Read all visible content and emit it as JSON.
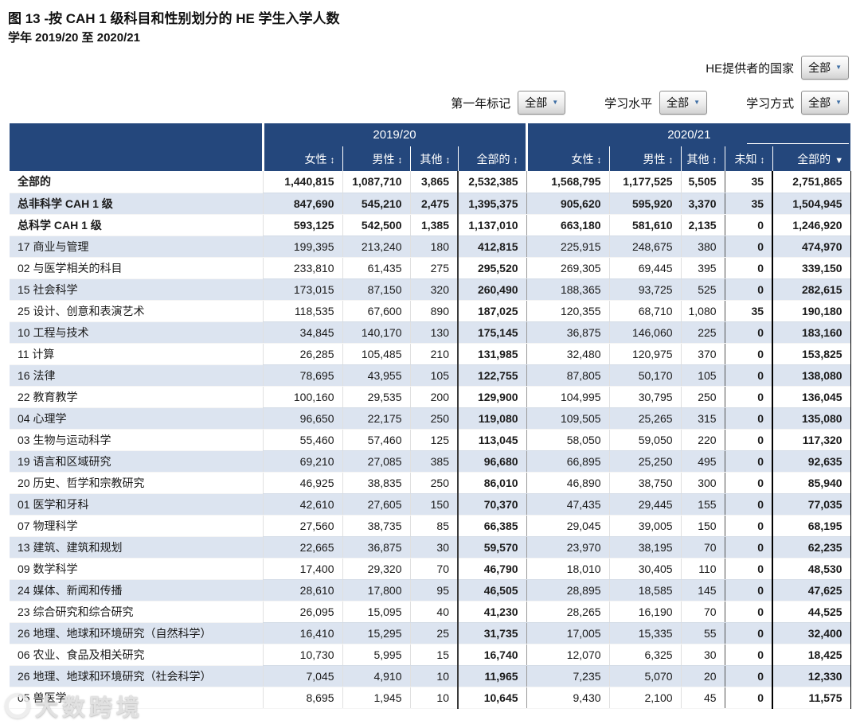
{
  "title": "图 13 -按 CAH 1 级科目和性别划分的 HE 学生入学人数",
  "subtitle": "学年 2019/20 至 2020/21",
  "colors": {
    "header_bg": "#24477C",
    "row_alt": "#DCE4F0",
    "dropdown_arrow": "#3F6FA5"
  },
  "icons": {
    "sort_both": "↕",
    "sort_desc": "▼",
    "dropdown_arrow": "▼"
  },
  "filters": [
    {
      "id": "he-provider-country",
      "label": "HE提供者的国家",
      "value": "全部"
    },
    {
      "id": "first-year-marker",
      "label": "第一年标记",
      "value": "全部"
    },
    {
      "id": "study-level",
      "label": "学习水平",
      "value": "全部"
    },
    {
      "id": "study-mode",
      "label": "学习方式",
      "value": "全部"
    }
  ],
  "table": {
    "year_groups": [
      {
        "label": "2019/20",
        "colspan": 4
      },
      {
        "label": "2020/21",
        "colspan": 5
      }
    ],
    "columns": [
      {
        "label": "女性",
        "sort": "both"
      },
      {
        "label": "男性",
        "sort": "both"
      },
      {
        "label": "其他",
        "sort": "both"
      },
      {
        "label": "全部的",
        "sort": "both"
      },
      {
        "label": "女性",
        "sort": "both"
      },
      {
        "label": "男性",
        "sort": "both"
      },
      {
        "label": "其他",
        "sort": "both"
      },
      {
        "label": "未知",
        "sort": "both"
      },
      {
        "label": "全部的",
        "sort": "desc"
      }
    ],
    "rows": [
      {
        "label": "全部的",
        "bold": true,
        "values": [
          "1,440,815",
          "1,087,710",
          "3,865",
          "2,532,385",
          "1,568,795",
          "1,177,525",
          "5,505",
          "35",
          "2,751,865"
        ]
      },
      {
        "label": "总非科学 CAH 1 级",
        "bold": true,
        "values": [
          "847,690",
          "545,210",
          "2,475",
          "1,395,375",
          "905,620",
          "595,920",
          "3,370",
          "35",
          "1,504,945"
        ]
      },
      {
        "label": "总科学 CAH 1 级",
        "bold": true,
        "values": [
          "593,125",
          "542,500",
          "1,385",
          "1,137,010",
          "663,180",
          "581,610",
          "2,135",
          "0",
          "1,246,920"
        ]
      },
      {
        "label": "17 商业与管理",
        "bold": false,
        "values": [
          "199,395",
          "213,240",
          "180",
          "412,815",
          "225,915",
          "248,675",
          "380",
          "0",
          "474,970"
        ]
      },
      {
        "label": "02 与医学相关的科目",
        "bold": false,
        "values": [
          "233,810",
          "61,435",
          "275",
          "295,520",
          "269,305",
          "69,445",
          "395",
          "0",
          "339,150"
        ]
      },
      {
        "label": "15 社会科学",
        "bold": false,
        "values": [
          "173,015",
          "87,150",
          "320",
          "260,490",
          "188,365",
          "93,725",
          "525",
          "0",
          "282,615"
        ]
      },
      {
        "label": "25 设计、创意和表演艺术",
        "bold": false,
        "values": [
          "118,535",
          "67,600",
          "890",
          "187,025",
          "120,355",
          "68,710",
          "1,080",
          "35",
          "190,180"
        ]
      },
      {
        "label": "10 工程与技术",
        "bold": false,
        "values": [
          "34,845",
          "140,170",
          "130",
          "175,145",
          "36,875",
          "146,060",
          "225",
          "0",
          "183,160"
        ]
      },
      {
        "label": "11 计算",
        "bold": false,
        "values": [
          "26,285",
          "105,485",
          "210",
          "131,985",
          "32,480",
          "120,975",
          "370",
          "0",
          "153,825"
        ]
      },
      {
        "label": "16 法律",
        "bold": false,
        "values": [
          "78,695",
          "43,955",
          "105",
          "122,755",
          "87,805",
          "50,170",
          "105",
          "0",
          "138,080"
        ]
      },
      {
        "label": "22 教育教学",
        "bold": false,
        "values": [
          "100,160",
          "29,535",
          "200",
          "129,900",
          "104,995",
          "30,795",
          "250",
          "0",
          "136,045"
        ]
      },
      {
        "label": "04 心理学",
        "bold": false,
        "values": [
          "96,650",
          "22,175",
          "250",
          "119,080",
          "109,505",
          "25,265",
          "315",
          "0",
          "135,080"
        ]
      },
      {
        "label": "03 生物与运动科学",
        "bold": false,
        "values": [
          "55,460",
          "57,460",
          "125",
          "113,045",
          "58,050",
          "59,050",
          "220",
          "0",
          "117,320"
        ]
      },
      {
        "label": "19 语言和区域研究",
        "bold": false,
        "values": [
          "69,210",
          "27,085",
          "385",
          "96,680",
          "66,895",
          "25,250",
          "495",
          "0",
          "92,635"
        ]
      },
      {
        "label": "20 历史、哲学和宗教研究",
        "bold": false,
        "values": [
          "46,925",
          "38,835",
          "250",
          "86,010",
          "46,890",
          "38,750",
          "300",
          "0",
          "85,940"
        ]
      },
      {
        "label": "01 医学和牙科",
        "bold": false,
        "values": [
          "42,610",
          "27,605",
          "150",
          "70,370",
          "47,435",
          "29,445",
          "155",
          "0",
          "77,035"
        ]
      },
      {
        "label": "07 物理科学",
        "bold": false,
        "values": [
          "27,560",
          "38,735",
          "85",
          "66,385",
          "29,045",
          "39,005",
          "150",
          "0",
          "68,195"
        ]
      },
      {
        "label": "13 建筑、建筑和规划",
        "bold": false,
        "values": [
          "22,665",
          "36,875",
          "30",
          "59,570",
          "23,970",
          "38,195",
          "70",
          "0",
          "62,235"
        ]
      },
      {
        "label": "09 数学科学",
        "bold": false,
        "values": [
          "17,400",
          "29,320",
          "70",
          "46,790",
          "18,010",
          "30,405",
          "110",
          "0",
          "48,530"
        ]
      },
      {
        "label": "24 媒体、新闻和传播",
        "bold": false,
        "values": [
          "28,610",
          "17,800",
          "95",
          "46,505",
          "28,895",
          "18,585",
          "145",
          "0",
          "47,625"
        ]
      },
      {
        "label": "23 综合研究和综合研究",
        "bold": false,
        "values": [
          "26,095",
          "15,095",
          "40",
          "41,230",
          "28,265",
          "16,190",
          "70",
          "0",
          "44,525"
        ]
      },
      {
        "label": "26 地理、地球和环境研究（自然科学）",
        "bold": false,
        "values": [
          "16,410",
          "15,295",
          "25",
          "31,735",
          "17,005",
          "15,335",
          "55",
          "0",
          "32,400"
        ]
      },
      {
        "label": "06 农业、食品及相关研究",
        "bold": false,
        "values": [
          "10,730",
          "5,995",
          "15",
          "16,740",
          "12,070",
          "6,325",
          "30",
          "0",
          "18,425"
        ]
      },
      {
        "label": "26 地理、地球和环境研究（社会科学）",
        "bold": false,
        "values": [
          "7,045",
          "4,910",
          "10",
          "11,965",
          "7,235",
          "5,070",
          "20",
          "0",
          "12,330"
        ]
      },
      {
        "label": "05 兽医学",
        "bold": false,
        "values": [
          "8,695",
          "1,945",
          "10",
          "10,645",
          "9,430",
          "2,100",
          "45",
          "0",
          "11,575"
        ]
      }
    ]
  },
  "watermark": {
    "text": "大数跨境"
  }
}
